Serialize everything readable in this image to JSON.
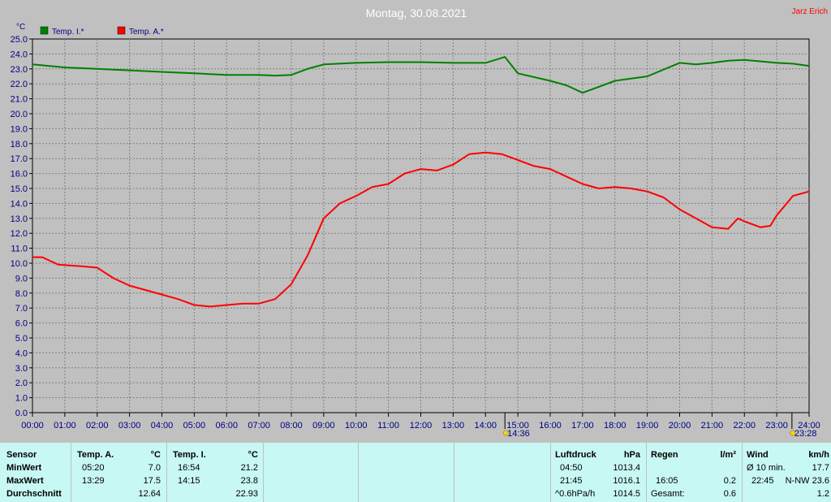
{
  "title": "Montag, 30.08.2021",
  "author": "Jarz Erich",
  "unit": "°C",
  "legend": [
    {
      "label": "Temp. I.*",
      "color": "#008000"
    },
    {
      "label": "Temp. A.*",
      "color": "#ff0000"
    }
  ],
  "markers": [
    {
      "label": "14:36",
      "icon": "sun-weather-icon",
      "x_hours": 14.6
    },
    {
      "label": "23:28",
      "icon": "cloud-sun-weather-icon",
      "x_hours": 23.47
    }
  ],
  "chart_data": {
    "type": "line",
    "title": "Montag, 30.08.2021",
    "ylabel": "°C",
    "xlabel": "",
    "xlim": [
      0,
      24
    ],
    "ylim": [
      0,
      25
    ],
    "grid": true,
    "legend_position": "top-left",
    "x_ticks": [
      "00:00",
      "01:00",
      "02:00",
      "03:00",
      "04:00",
      "05:00",
      "06:00",
      "07:00",
      "08:00",
      "09:00",
      "10:00",
      "11:00",
      "12:00",
      "13:00",
      "14:00",
      "15:00",
      "16:00",
      "17:00",
      "18:00",
      "19:00",
      "20:00",
      "21:00",
      "22:00",
      "23:00",
      "24:00"
    ],
    "y_ticks": [
      "0.0",
      "1.0",
      "2.0",
      "3.0",
      "4.0",
      "5.0",
      "6.0",
      "7.0",
      "8.0",
      "9.0",
      "10.0",
      "11.0",
      "12.0",
      "13.0",
      "14.0",
      "15.0",
      "16.0",
      "17.0",
      "18.0",
      "19.0",
      "20.0",
      "21.0",
      "22.0",
      "23.0",
      "24.0",
      "25.0"
    ],
    "series": [
      {
        "name": "Temp. I.*",
        "color": "#008000",
        "x": [
          0,
          1,
          2,
          3,
          4,
          5,
          6,
          7,
          7.5,
          8,
          8.5,
          9,
          10,
          11,
          12,
          13,
          14,
          14.3,
          14.6,
          15,
          16,
          16.5,
          17,
          17.5,
          18,
          19,
          20,
          20.5,
          21,
          21.5,
          22,
          23,
          23.5,
          24
        ],
        "y": [
          23.3,
          23.1,
          23.0,
          22.9,
          22.8,
          22.7,
          22.6,
          22.6,
          22.55,
          22.6,
          23.0,
          23.3,
          23.4,
          23.45,
          23.45,
          23.4,
          23.4,
          23.6,
          23.8,
          22.7,
          22.2,
          21.9,
          21.4,
          21.8,
          22.2,
          22.5,
          23.4,
          23.3,
          23.4,
          23.55,
          23.6,
          23.4,
          23.35,
          23.2
        ]
      },
      {
        "name": "Temp. A.*",
        "color": "#ff0000",
        "x": [
          0,
          0.3,
          0.8,
          1.5,
          2,
          2.5,
          3,
          3.5,
          4,
          4.5,
          5,
          5.5,
          6,
          6.5,
          7,
          7.5,
          8,
          8.5,
          9,
          9.5,
          10,
          10.5,
          11,
          11.5,
          12,
          12.5,
          13,
          13.5,
          14,
          14.5,
          15,
          15.5,
          16,
          16.5,
          17,
          17.5,
          18,
          18.5,
          19,
          19.5,
          20,
          20.5,
          21,
          21.5,
          21.8,
          22,
          22.5,
          22.8,
          23,
          23.5,
          24
        ],
        "y": [
          10.4,
          10.4,
          9.9,
          9.8,
          9.7,
          9.0,
          8.5,
          8.2,
          7.9,
          7.6,
          7.2,
          7.1,
          7.2,
          7.3,
          7.3,
          7.6,
          8.6,
          10.5,
          13.0,
          14.0,
          14.5,
          15.1,
          15.3,
          16.0,
          16.3,
          16.2,
          16.6,
          17.3,
          17.4,
          17.3,
          16.9,
          16.5,
          16.3,
          15.8,
          15.3,
          15.0,
          15.1,
          15.0,
          14.8,
          14.4,
          13.6,
          13.0,
          12.4,
          12.3,
          13.0,
          12.8,
          12.4,
          12.5,
          13.2,
          14.5,
          14.8
        ]
      }
    ]
  },
  "table": {
    "sensor": {
      "header": "Sensor",
      "rows": [
        "MinWert",
        "MaxWert",
        "Durchschnitt"
      ]
    },
    "temp_a": {
      "header": "Temp. A.",
      "unit": "°C",
      "min_time": "05:20",
      "min": "7.0",
      "max_time": "13:29",
      "max": "17.5",
      "avg": "12.64"
    },
    "temp_i": {
      "header": "Temp. I.",
      "unit": "°C",
      "min_time": "16:54",
      "min": "21.2",
      "max_time": "14:15",
      "max": "23.8",
      "avg": "22.93"
    },
    "luftdruck": {
      "header": "Luftdruck",
      "unit": "hPa",
      "min_time": "04:50",
      "min": "1013.4",
      "max_time": "21:45",
      "max": "1016.1",
      "trend_label": "^0.6hPa/h",
      "current": "1014.5"
    },
    "regen": {
      "header": "Regen",
      "unit": "l/m²",
      "row2_time": "16:05",
      "row2_value": "0.2",
      "total_label": "Gesamt:",
      "total": "0.6"
    },
    "wind": {
      "header": "Wind",
      "unit": "km/h",
      "avg_label": "Ø 10 min.",
      "avg_value": "17.7",
      "max_time": "22:45",
      "max_value": "N-NW 23.6",
      "row3_value": "1.2"
    }
  }
}
